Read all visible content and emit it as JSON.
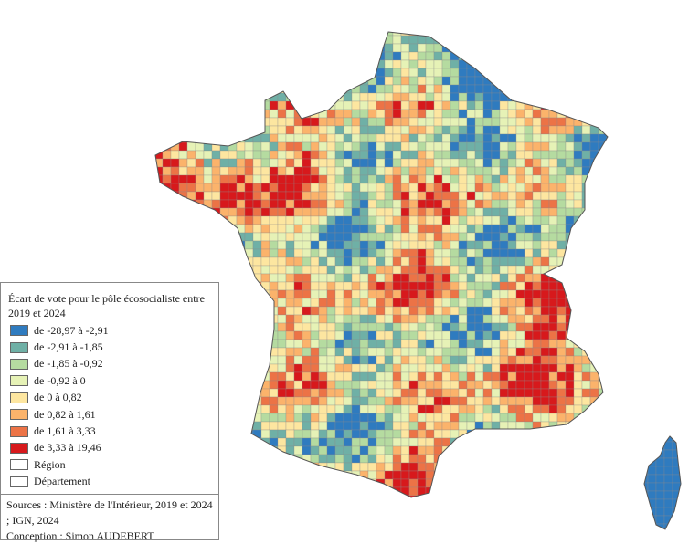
{
  "legend": {
    "title": "Écart de vote pour le pôle écosocialiste entre 2019 et 2024",
    "items": [
      {
        "label": "de -28,97 à -2,91",
        "color": "#2f7bbf"
      },
      {
        "label": "de -2,91 à -1,85",
        "color": "#6fb0a6"
      },
      {
        "label": "de -1,85 à -0,92",
        "color": "#b5dba0"
      },
      {
        "label": "de -0,92 à 0",
        "color": "#e6f2b6"
      },
      {
        "label": "de 0 à 0,82",
        "color": "#fde6a0"
      },
      {
        "label": "de 0,82 à 1,61",
        "color": "#fbb36b"
      },
      {
        "label": "de 1,61 à 3,33",
        "color": "#ec7346"
      },
      {
        "label": "de 3,33 à 19,46",
        "color": "#d7191c"
      },
      {
        "label": "Région",
        "color": "#ffffff"
      },
      {
        "label": "Département",
        "color": "#ffffff"
      }
    ]
  },
  "sources": {
    "lines": [
      "Sources : Ministère de l'Intérieur, 2019 et 2024 ; IGN, 2024",
      "Conception : Simon AUDEBERT"
    ]
  }
}
